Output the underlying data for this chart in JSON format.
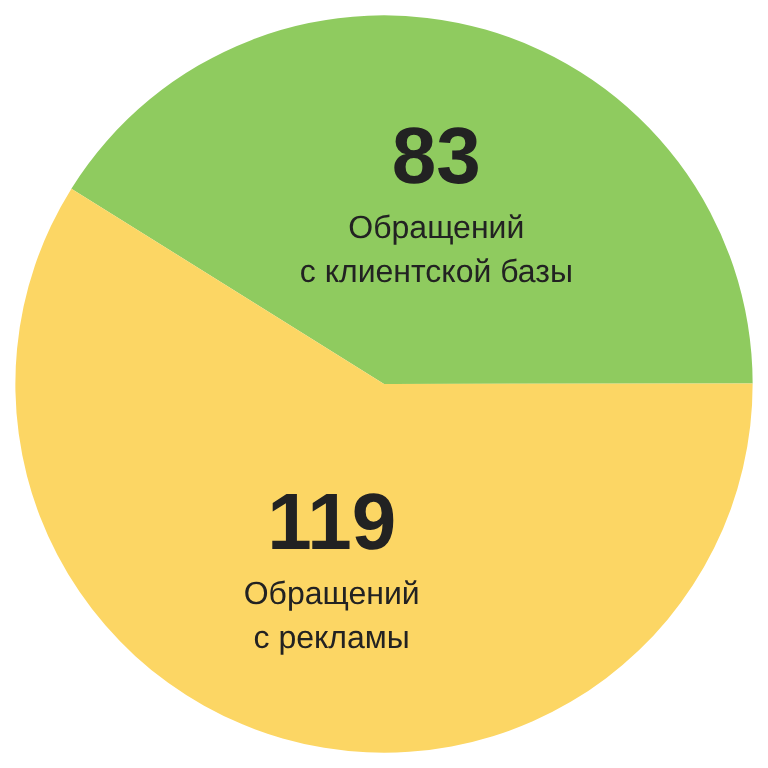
{
  "chart_data": {
    "type": "pie",
    "categories": [
      "Обращений с клиентской базы",
      "Обращений с рекламы"
    ],
    "values": [
      83,
      119
    ],
    "colors": [
      "#8fcb5f",
      "#fcd664"
    ],
    "data_labels": true
  }
}
